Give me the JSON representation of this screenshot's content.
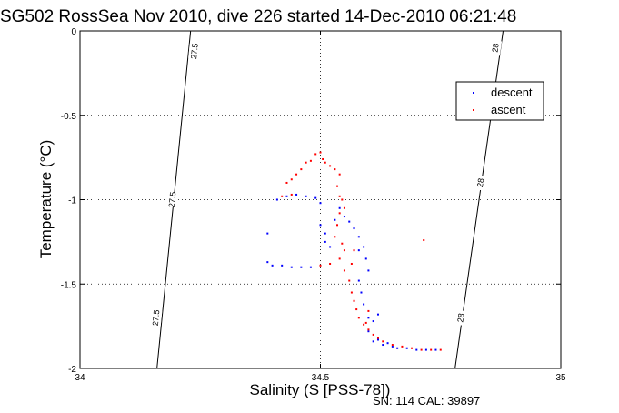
{
  "chart_data": {
    "type": "scatter",
    "title": "SG502 RossSea Nov 2010, dive 226 started 14-Dec-2010 06:21:48",
    "xlabel": "Salinity (S [PSS-78])",
    "ylabel": "Temperature (°C)",
    "xlim": [
      34,
      35
    ],
    "ylim": [
      -2,
      0
    ],
    "x_ticks": [
      34,
      34.5,
      35
    ],
    "x_tick_labels": [
      "34",
      "34.5",
      "35"
    ],
    "y_ticks": [
      -2,
      -1.5,
      -1,
      -0.5,
      0
    ],
    "y_tick_labels": [
      "-2",
      "-1.5",
      "-1",
      "-0.5",
      "0"
    ],
    "grid": true,
    "legend_position": "top-right",
    "density_contours": [
      {
        "label": "27.5",
        "points": [
          [
            34.23,
            0
          ],
          [
            34.16,
            -2
          ]
        ],
        "label_positions": [
          [
            34.238,
            -0.12
          ],
          [
            34.192,
            -1.0
          ],
          [
            34.158,
            -1.7
          ]
        ]
      },
      {
        "label": "28",
        "points": [
          [
            34.88,
            0
          ],
          [
            34.78,
            -2
          ]
        ],
        "label_positions": [
          [
            34.864,
            -0.1
          ],
          [
            34.833,
            -0.9
          ],
          [
            34.792,
            -1.7
          ]
        ]
      }
    ],
    "series": [
      {
        "name": "descent",
        "color": "#0000ff",
        "points": [
          [
            34.39,
            -1.2
          ],
          [
            34.39,
            -1.37
          ],
          [
            34.4,
            -1.39
          ],
          [
            34.41,
            -1.0
          ],
          [
            34.42,
            -1.39
          ],
          [
            34.44,
            -1.4
          ],
          [
            34.46,
            -1.4
          ],
          [
            34.48,
            -1.4
          ],
          [
            34.43,
            -0.98
          ],
          [
            34.45,
            -0.97
          ],
          [
            34.47,
            -0.98
          ],
          [
            34.49,
            -0.99
          ],
          [
            34.5,
            -1.02
          ],
          [
            34.5,
            -1.15
          ],
          [
            34.51,
            -1.2
          ],
          [
            34.51,
            -1.25
          ],
          [
            34.52,
            -1.28
          ],
          [
            34.53,
            -1.12
          ],
          [
            34.54,
            -1.05
          ],
          [
            34.55,
            -1.1
          ],
          [
            34.56,
            -1.13
          ],
          [
            34.57,
            -1.17
          ],
          [
            34.58,
            -1.22
          ],
          [
            34.59,
            -1.28
          ],
          [
            34.595,
            -1.35
          ],
          [
            34.6,
            -1.42
          ],
          [
            34.58,
            -1.3
          ],
          [
            34.58,
            -1.48
          ],
          [
            34.585,
            -1.55
          ],
          [
            34.59,
            -1.62
          ],
          [
            34.6,
            -1.7
          ],
          [
            34.61,
            -1.72
          ],
          [
            34.62,
            -1.68
          ],
          [
            34.6,
            -1.78
          ],
          [
            34.62,
            -1.83
          ],
          [
            34.63,
            -1.86
          ],
          [
            34.65,
            -1.87
          ],
          [
            34.68,
            -1.88
          ],
          [
            34.7,
            -1.89
          ],
          [
            34.72,
            -1.89
          ],
          [
            34.74,
            -1.89
          ],
          [
            34.61,
            -1.84
          ],
          [
            34.64,
            -1.85
          ],
          [
            34.66,
            -1.88
          ]
        ]
      },
      {
        "name": "ascent",
        "color": "#ff0000",
        "points": [
          [
            34.42,
            -0.98
          ],
          [
            34.43,
            -0.9
          ],
          [
            34.44,
            -0.88
          ],
          [
            34.45,
            -0.85
          ],
          [
            34.46,
            -0.82
          ],
          [
            34.47,
            -0.78
          ],
          [
            34.48,
            -0.77
          ],
          [
            34.49,
            -0.73
          ],
          [
            34.5,
            -0.72
          ],
          [
            34.505,
            -0.76
          ],
          [
            34.51,
            -0.78
          ],
          [
            34.52,
            -0.8
          ],
          [
            34.53,
            -0.82
          ],
          [
            34.54,
            -0.85
          ],
          [
            34.535,
            -0.92
          ],
          [
            34.54,
            -0.98
          ],
          [
            34.545,
            -1.0
          ],
          [
            34.55,
            -1.05
          ],
          [
            34.54,
            -1.08
          ],
          [
            34.535,
            -1.15
          ],
          [
            34.53,
            -1.22
          ],
          [
            34.545,
            -1.26
          ],
          [
            34.55,
            -1.3
          ],
          [
            34.54,
            -1.35
          ],
          [
            34.55,
            -1.42
          ],
          [
            34.56,
            -1.48
          ],
          [
            34.565,
            -1.55
          ],
          [
            34.57,
            -1.6
          ],
          [
            34.575,
            -1.65
          ],
          [
            34.58,
            -1.7
          ],
          [
            34.59,
            -1.74
          ],
          [
            34.6,
            -1.77
          ],
          [
            34.61,
            -1.8
          ],
          [
            34.62,
            -1.82
          ],
          [
            34.63,
            -1.84
          ],
          [
            34.65,
            -1.86
          ],
          [
            34.67,
            -1.87
          ],
          [
            34.69,
            -1.88
          ],
          [
            34.71,
            -1.89
          ],
          [
            34.73,
            -1.89
          ],
          [
            34.75,
            -1.89
          ],
          [
            34.5,
            -1.39
          ],
          [
            34.52,
            -1.38
          ],
          [
            34.44,
            -0.97
          ],
          [
            34.715,
            -1.24
          ],
          [
            34.57,
            -1.3
          ],
          [
            34.565,
            -1.38
          ],
          [
            34.6,
            -1.66
          ],
          [
            34.595,
            -1.73
          ]
        ]
      }
    ],
    "annotation": "SN: 114  CAL: 39897"
  }
}
